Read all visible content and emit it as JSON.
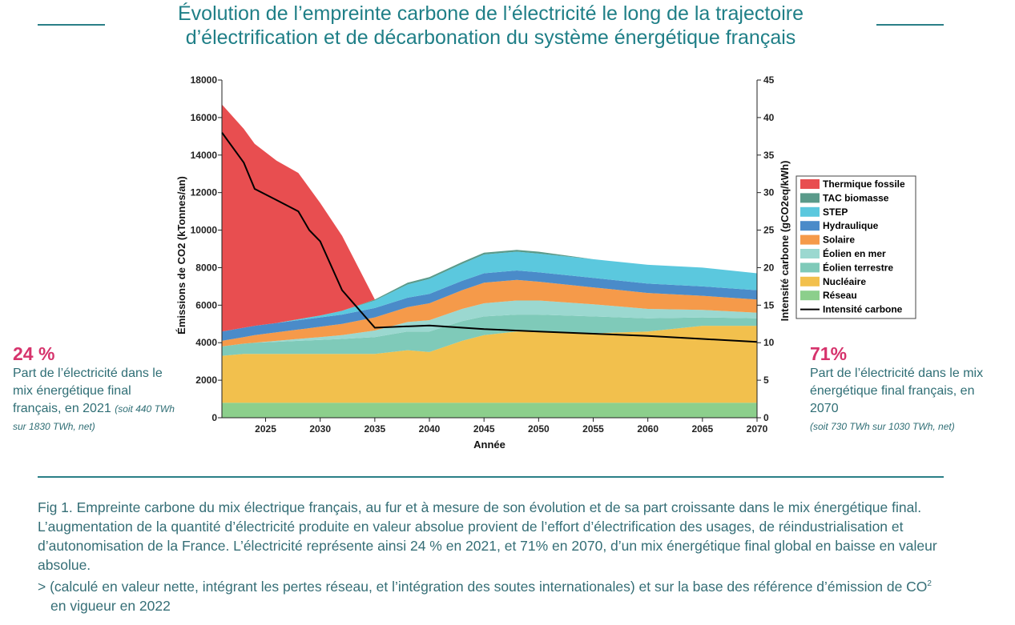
{
  "title": {
    "line1": "Évolution de l’empreinte carbone de l’électricité le long de la trajectoire",
    "line2": "d’électrification et de décarbonation du système énergétique français"
  },
  "left_stat": {
    "percent": "24 %",
    "text": "Part de l’électricité dans le mix énergétique final français, en 2021",
    "note": "(soit 440 TWh sur 1830 TWh, net)"
  },
  "right_stat": {
    "percent": "71%",
    "text": "Part de l’électricité dans le mix énergétique final français, en 2070",
    "note": "(soit 730 TWh sur 1030 TWh, net)"
  },
  "caption": {
    "paragraph": "Fig 1. Empreinte carbone du mix électrique français, au fur et à mesure de son évolution et de sa part croissante dans le mix énergétique final. L’augmentation de la quantité d’électricité produite en valeur absolue provient de l’effort d’électrification des usages, de réindustrialisation et d’autonomisation de la France. L’électricité représente ainsi 24 % en 2021, et 71% en 2070, d’un mix énergétique final global en baisse en valeur absolue.",
    "note_main": "> (calculé en valeur nette, intégrant les pertes réseau, et l’intégration des soutes internationales) et sur la base des référence d’émission de CO",
    "note_sup": "2",
    "note_end": " en vigueur en 2022"
  },
  "chart_data": {
    "type": "area",
    "stacked": true,
    "xlabel": "Année",
    "ylabel": "Émissions de CO2 (kTonnes/an)",
    "y2label": "Intensité carbone (gCO2eq/kWh)",
    "xlim": [
      2021,
      2070
    ],
    "ylim": [
      0,
      18000
    ],
    "y2lim": [
      0,
      45
    ],
    "xticks": [
      2025,
      2030,
      2035,
      2040,
      2045,
      2050,
      2055,
      2060,
      2065,
      2070
    ],
    "yticks": [
      0,
      2000,
      4000,
      6000,
      8000,
      10000,
      12000,
      14000,
      16000,
      18000
    ],
    "y2ticks": [
      0,
      5,
      10,
      15,
      20,
      25,
      30,
      35,
      40,
      45
    ],
    "x": [
      2021,
      2023,
      2024,
      2026,
      2028,
      2030,
      2032,
      2035,
      2038,
      2040,
      2043,
      2045,
      2048,
      2050,
      2055,
      2060,
      2065,
      2070
    ],
    "series": [
      {
        "name": "Réseau",
        "color": "#8ccf8c",
        "values": [
          800,
          800,
          800,
          800,
          800,
          800,
          800,
          800,
          800,
          800,
          800,
          800,
          800,
          800,
          800,
          800,
          800,
          800
        ]
      },
      {
        "name": "Nucléaire",
        "color": "#f2c04d",
        "values": [
          2500,
          2600,
          2600,
          2600,
          2600,
          2600,
          2600,
          2600,
          2800,
          2700,
          3300,
          3600,
          3800,
          3800,
          3700,
          3800,
          4100,
          4100
        ]
      },
      {
        "name": "Éolien terrestre",
        "color": "#7fcab9",
        "values": [
          500,
          550,
          600,
          650,
          700,
          750,
          800,
          900,
          1000,
          1100,
          1050,
          1000,
          900,
          900,
          900,
          700,
          450,
          400
        ]
      },
      {
        "name": "Éolien en mer",
        "color": "#9bd8d0",
        "values": [
          0,
          0,
          0,
          50,
          100,
          150,
          200,
          350,
          500,
          600,
          650,
          700,
          750,
          750,
          650,
          500,
          400,
          300
        ]
      },
      {
        "name": "Solaire",
        "color": "#f59a4a",
        "values": [
          300,
          350,
          400,
          450,
          500,
          550,
          600,
          700,
          800,
          900,
          1000,
          1100,
          1100,
          1000,
          900,
          850,
          750,
          700
        ]
      },
      {
        "name": "Hydraulique",
        "color": "#4a8bc9",
        "values": [
          500,
          500,
          500,
          500,
          500,
          500,
          500,
          500,
          500,
          500,
          500,
          500,
          500,
          500,
          500,
          500,
          500,
          500
        ]
      },
      {
        "name": "STEP",
        "color": "#5bc8de",
        "values": [
          0,
          0,
          0,
          0,
          50,
          100,
          200,
          400,
          700,
          800,
          900,
          1000,
          1000,
          1000,
          1000,
          1000,
          1000,
          900
        ]
      },
      {
        "name": "TAC biomasse",
        "color": "#5a9a8a",
        "values": [
          0,
          0,
          0,
          0,
          0,
          0,
          0,
          50,
          100,
          100,
          100,
          100,
          100,
          100,
          0,
          0,
          0,
          0
        ]
      },
      {
        "name": "Thermique fossile",
        "color": "#e84e50",
        "values": [
          12100,
          10600,
          9700,
          8650,
          7800,
          6000,
          4000,
          0,
          0,
          0,
          0,
          0,
          0,
          0,
          0,
          0,
          0,
          0
        ]
      }
    ],
    "line": {
      "name": "Intensité carbone",
      "color": "#000000",
      "axis": "right",
      "x": [
        2021,
        2023,
        2024,
        2026,
        2028,
        2029,
        2030,
        2032,
        2035,
        2040,
        2045,
        2050,
        2055,
        2060,
        2065,
        2070
      ],
      "values": [
        38,
        34,
        30.5,
        29,
        27.5,
        25,
        23.5,
        17,
        12,
        12.3,
        11.8,
        11.5,
        11.2,
        10.9,
        10.5,
        10.1
      ]
    },
    "legend_position": "right",
    "legend": [
      "Thermique fossile",
      "TAC biomasse",
      "STEP",
      "Hydraulique",
      "Solaire",
      "Éolien en mer",
      "Éolien terrestre",
      "Nucléaire",
      "Réseau",
      "Intensité carbone"
    ]
  }
}
